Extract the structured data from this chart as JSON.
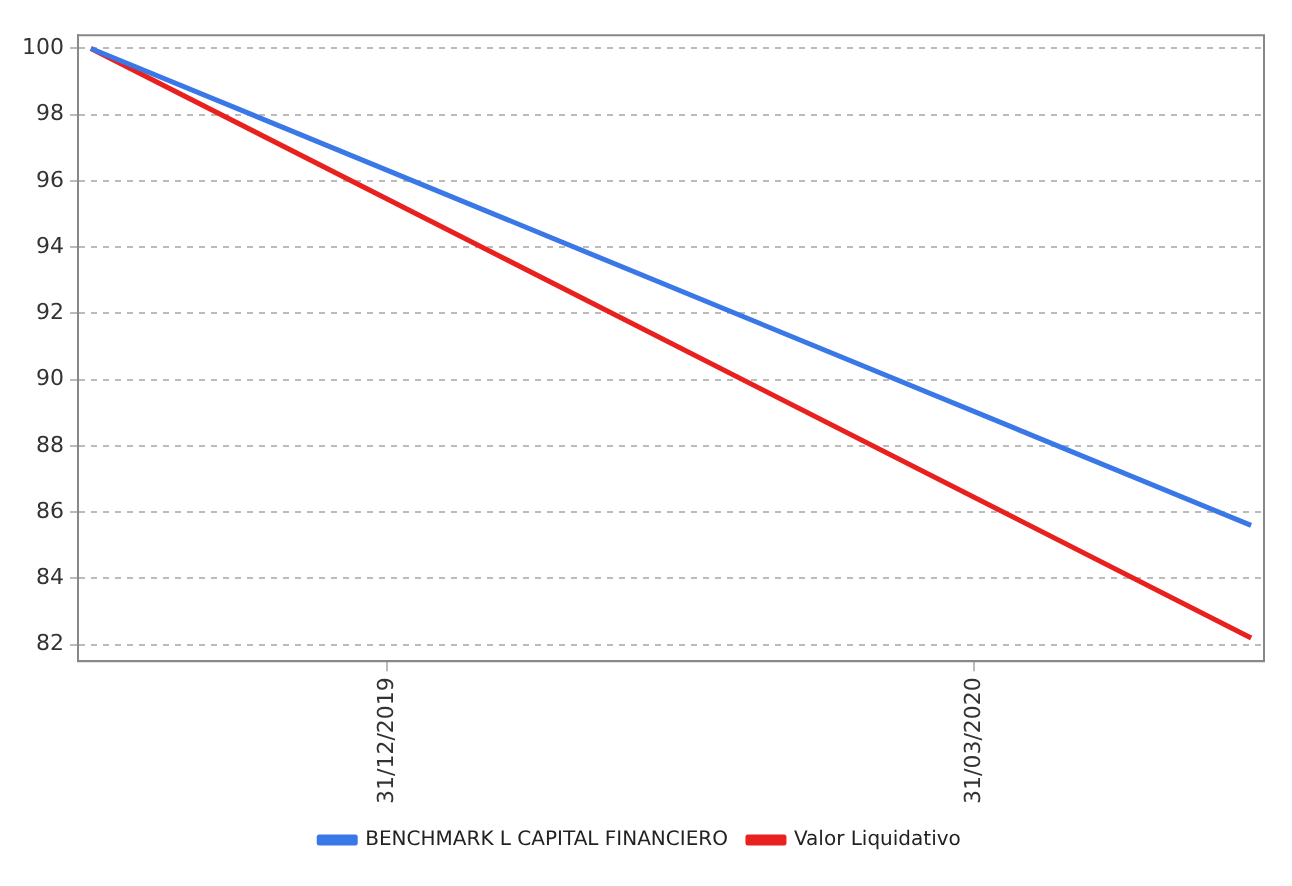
{
  "chart_data": {
    "type": "line",
    "x": [
      "2019-11-15",
      "2020-05-13"
    ],
    "series": [
      {
        "name": "BENCHMARK L CAPITAL FINANCIERO",
        "color": "#3b78e7",
        "values": [
          100,
          85.6
        ]
      },
      {
        "name": "Valor Liquidativo",
        "color": "#e8211f",
        "values": [
          100,
          82.2
        ]
      }
    ],
    "xlim": [
      "2019-11-13",
      "2020-05-15"
    ],
    "xticks": [
      {
        "value": "2019-12-31",
        "label": "31/12/2019"
      },
      {
        "value": "2020-03-31",
        "label": "31/03/2020"
      }
    ],
    "ylim": [
      81.5,
      100.4
    ],
    "yticks": [
      82,
      84,
      86,
      88,
      90,
      92,
      94,
      96,
      98,
      100
    ],
    "grid": "y",
    "legend": "bottom",
    "marker": "none",
    "line_style": "solid"
  }
}
